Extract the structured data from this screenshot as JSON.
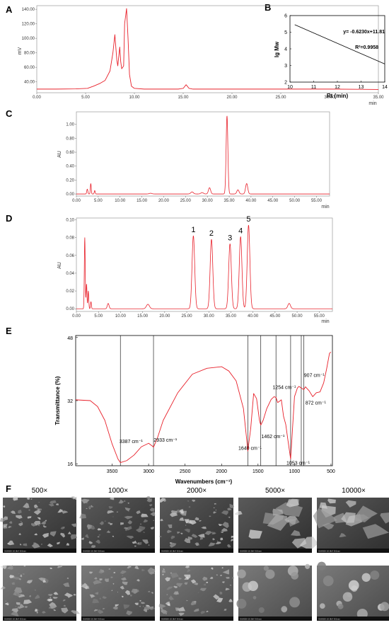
{
  "panels": {
    "A": "A",
    "B": "B",
    "C": "C",
    "D": "D",
    "E": "E",
    "F": "F"
  },
  "chart_data": [
    {
      "id": "A",
      "type": "line",
      "xlabel": "min",
      "ylabel": "mV",
      "xlim": [
        0,
        35
      ],
      "ylim": [
        25,
        145
      ],
      "xticks": [
        "0.00",
        "5.00",
        "10.00",
        "15.00",
        "20.00",
        "25.00",
        "30.00",
        "35.00"
      ],
      "yticks": [
        "40.00",
        "60.00",
        "80.00",
        "100.00",
        "120.00",
        "140.00"
      ],
      "x": [
        0,
        2,
        4,
        5.2,
        5.8,
        6.5,
        7.0,
        7.5,
        7.8,
        8.0,
        8.2,
        8.3,
        8.5,
        8.6,
        8.7,
        8.9,
        9.0,
        9.2,
        9.35,
        9.5,
        9.7,
        10,
        11,
        14.5,
        15.0,
        15.3,
        15.6,
        16,
        20,
        25,
        30,
        35
      ],
      "y": [
        30,
        30,
        30.3,
        31,
        34,
        38,
        42,
        55,
        80,
        105,
        70,
        62,
        88,
        68,
        58,
        62,
        120,
        141,
        100,
        50,
        34,
        31,
        30,
        30,
        31,
        36,
        31,
        30,
        30,
        30,
        30,
        29.5
      ],
      "color": "#e8202a"
    },
    {
      "id": "B",
      "type": "line",
      "xlabel": "Rt (min)",
      "ylabel": "lg Mw",
      "xlim": [
        10,
        14
      ],
      "ylim": [
        2,
        6
      ],
      "xticks": [
        "10",
        "11",
        "12",
        "13",
        "14"
      ],
      "yticks": [
        "2",
        "3",
        "4",
        "5",
        "6"
      ],
      "x": [
        10.2,
        14
      ],
      "y": [
        5.45,
        3.09
      ],
      "equation": "y= -0.6230x+11.81",
      "r2": "R²=0.9958",
      "color": "#000000"
    },
    {
      "id": "C",
      "type": "line",
      "xlabel": "min",
      "ylabel": "AU",
      "xlim": [
        0,
        58
      ],
      "ylim": [
        -0.03,
        1.18
      ],
      "xticks": [
        "0.00",
        "5.00",
        "10.00",
        "15.00",
        "20.00",
        "25.00",
        "30.00",
        "35.00",
        "40.00",
        "45.00",
        "50.00",
        "55.00"
      ],
      "yticks": [
        "0.00",
        "0.20",
        "0.40",
        "0.60",
        "0.80",
        "1.00"
      ],
      "peaks": [
        {
          "x": 2.5,
          "h": 0.07,
          "w": 0.12
        },
        {
          "x": 3.3,
          "h": 0.15,
          "w": 0.1
        },
        {
          "x": 4.2,
          "h": 0.05,
          "w": 0.1
        },
        {
          "x": 17.0,
          "h": 0.01,
          "w": 0.3
        },
        {
          "x": 26.5,
          "h": 0.03,
          "w": 0.3
        },
        {
          "x": 28.8,
          "h": 0.02,
          "w": 0.3
        },
        {
          "x": 30.5,
          "h": 0.09,
          "w": 0.25
        },
        {
          "x": 34.5,
          "h": 1.12,
          "w": 0.2
        },
        {
          "x": 37.0,
          "h": 0.06,
          "w": 0.25
        },
        {
          "x": 39.0,
          "h": 0.15,
          "w": 0.25
        }
      ],
      "color": "#e8202a"
    },
    {
      "id": "D",
      "type": "line",
      "xlabel": "min",
      "ylabel": "AU",
      "xlim": [
        0,
        58
      ],
      "ylim": [
        -0.003,
        0.102
      ],
      "xticks": [
        "0.00",
        "5.00",
        "10.00",
        "15.00",
        "20.00",
        "25.00",
        "30.00",
        "35.00",
        "40.00",
        "45.00",
        "50.00",
        "55.00"
      ],
      "yticks": [
        "0.00",
        "0.02",
        "0.04",
        "0.06",
        "0.08",
        "0.10"
      ],
      "peaks": [
        {
          "x": 1.9,
          "h": 0.08,
          "w": 0.1
        },
        {
          "x": 2.3,
          "h": 0.028,
          "w": 0.1
        },
        {
          "x": 2.7,
          "h": 0.02,
          "w": 0.1
        },
        {
          "x": 3.3,
          "h": 0.008,
          "w": 0.1
        },
        {
          "x": 7.2,
          "h": 0.006,
          "w": 0.2
        },
        {
          "x": 16.2,
          "h": 0.005,
          "w": 0.35
        },
        {
          "x": 26.5,
          "h": 0.082,
          "w": 0.3
        },
        {
          "x": 30.6,
          "h": 0.078,
          "w": 0.3
        },
        {
          "x": 34.8,
          "h": 0.073,
          "w": 0.3
        },
        {
          "x": 37.2,
          "h": 0.081,
          "w": 0.3
        },
        {
          "x": 39.0,
          "h": 0.094,
          "w": 0.3
        },
        {
          "x": 48.2,
          "h": 0.006,
          "w": 0.3
        }
      ],
      "peak_labels": [
        {
          "label": "1",
          "x": 26.5,
          "y": 0.086
        },
        {
          "label": "2",
          "x": 30.6,
          "y": 0.082
        },
        {
          "label": "3",
          "x": 34.8,
          "y": 0.077
        },
        {
          "label": "4",
          "x": 37.2,
          "y": 0.085
        },
        {
          "label": "5",
          "x": 39.0,
          "y": 0.098
        }
      ],
      "color": "#e8202a"
    },
    {
      "id": "E",
      "type": "line",
      "xlabel": "Wavenumbers (cm⁻¹)",
      "ylabel": "Transmittance (%)",
      "xlim": [
        4000,
        480
      ],
      "ylim": [
        15.5,
        48.5
      ],
      "xticks": [
        "3500",
        "3000",
        "2500",
        "2000",
        "1500",
        "1000",
        "500"
      ],
      "yticks": [
        "16",
        "32",
        "48"
      ],
      "x": [
        4000,
        3800,
        3700,
        3600,
        3500,
        3420,
        3387,
        3300,
        3200,
        3100,
        3000,
        2950,
        2933,
        2880,
        2800,
        2600,
        2400,
        2200,
        2000,
        1900,
        1800,
        1700,
        1660,
        1640,
        1600,
        1560,
        1520,
        1480,
        1462,
        1430,
        1380,
        1320,
        1280,
        1254,
        1230,
        1180,
        1150,
        1120,
        1090,
        1053,
        1030,
        1000,
        960,
        940,
        907,
        890,
        872,
        850,
        800,
        750,
        700,
        650,
        600,
        560,
        520,
        500
      ],
      "y": [
        32.2,
        32.0,
        30.5,
        27,
        21,
        17.2,
        16.3,
        16.8,
        18.2,
        20.3,
        21.2,
        20.5,
        20.2,
        22.5,
        27,
        34,
        38.7,
        40.2,
        40.6,
        39.5,
        37,
        30,
        23,
        19.2,
        25,
        33.8,
        32.5,
        27,
        25.8,
        27,
        30,
        32.3,
        33,
        32.8,
        31.5,
        32.2,
        28,
        26,
        22,
        17.2,
        24,
        33,
        35.2,
        35.6,
        35.2,
        35.0,
        34.8,
        35.5,
        34.5,
        33,
        34,
        34.2,
        36.5,
        40,
        44,
        44.3
      ],
      "markers": [
        3387,
        2933,
        1640,
        1462,
        1254,
        1053,
        907,
        872
      ],
      "annotations": [
        {
          "text": "3387 cm⁻¹",
          "x": 3400,
          "y": 21.2
        },
        {
          "text": "2933 cm⁻¹",
          "x": 2930,
          "y": 21.6
        },
        {
          "text": "1640 cm⁻¹",
          "x": 1770,
          "y": 19.5
        },
        {
          "text": "1462 cm⁻¹",
          "x": 1455,
          "y": 22.5
        },
        {
          "text": "1254 cm⁻¹",
          "x": 1300,
          "y": 35.0
        },
        {
          "text": "1053 cm⁻¹",
          "x": 1110,
          "y": 15.8
        },
        {
          "text": "907 cm⁻¹",
          "x": 870,
          "y": 38.0
        },
        {
          "text": "872 cm⁻¹",
          "x": 850,
          "y": 31.0
        }
      ],
      "color": "#e8202a"
    }
  ],
  "sem": {
    "magnifications": [
      "500×",
      "1000×",
      "2000×",
      "5000×",
      "10000×"
    ],
    "scalebar_text": "SU8020 10.0kV 8.6mm"
  }
}
